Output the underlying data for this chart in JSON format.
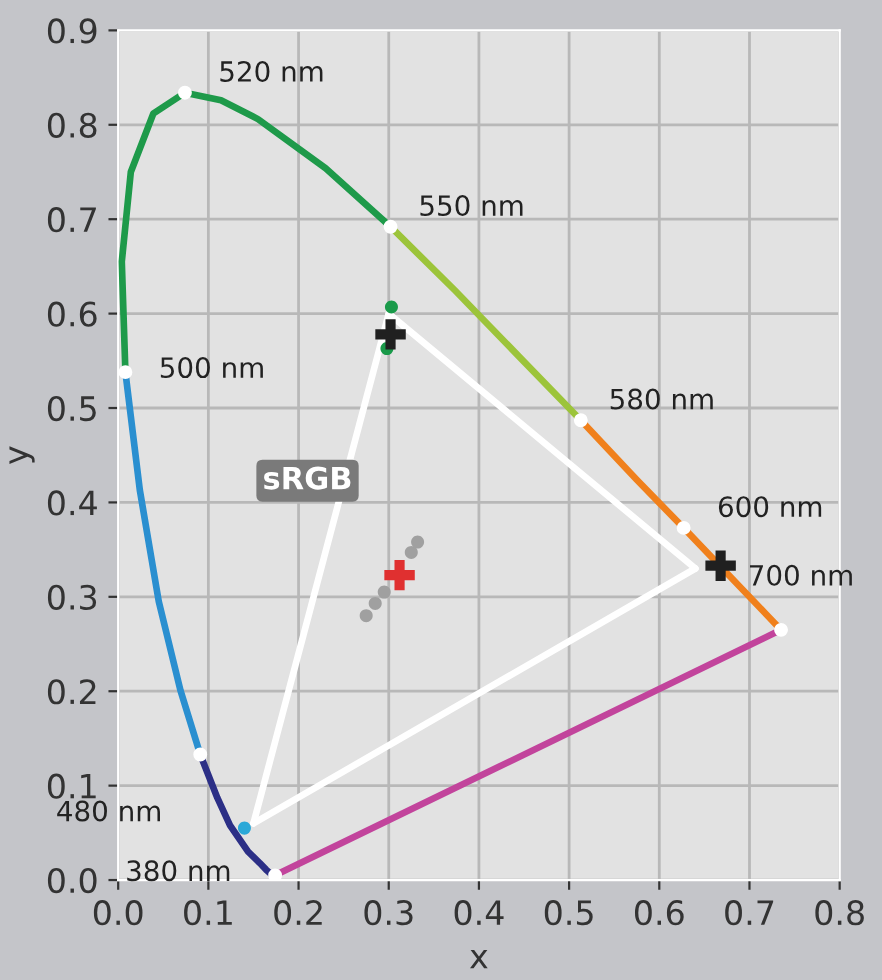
{
  "chart_data": {
    "type": "line",
    "xlabel": "x",
    "ylabel": "y",
    "xlim": [
      0,
      0.8
    ],
    "ylim": [
      0,
      0.9
    ],
    "xticks": [
      {
        "value": 0,
        "label": "0.0"
      },
      0.1,
      0.2,
      0.3,
      0.4,
      0.5,
      0.6,
      0.7,
      0.8
    ],
    "yticks": [
      {
        "value": 0,
        "label": "0.0"
      },
      0.1,
      0.2,
      0.3,
      0.4,
      0.5,
      0.6,
      0.7,
      0.8,
      0.9
    ],
    "grid": true,
    "legend": false,
    "marker": "none",
    "line_style": "solid",
    "series": [
      {
        "color": "#2c2f86",
        "x": [
          0.174,
          0.171,
          0.164,
          0.157,
          0.144,
          0.124,
          0.11,
          0.091
        ],
        "values": [
          0.005,
          0.005,
          0.011,
          0.018,
          0.03,
          0.058,
          0.087,
          0.133
        ]
      },
      {
        "color": "#2a8fd0",
        "x": [
          0.091,
          0.069,
          0.045,
          0.024,
          0.008
        ],
        "values": [
          0.133,
          0.201,
          0.295,
          0.413,
          0.538
        ]
      },
      {
        "color": "#1e9a4a",
        "x": [
          0.008,
          0.004,
          0.014,
          0.039,
          0.074,
          0.114,
          0.155,
          0.23,
          0.302
        ],
        "values": [
          0.538,
          0.655,
          0.75,
          0.812,
          0.834,
          0.826,
          0.806,
          0.754,
          0.692
        ]
      },
      {
        "color": "#9cc43a",
        "x": [
          0.302,
          0.373,
          0.444,
          0.513
        ],
        "values": [
          0.692,
          0.625,
          0.555,
          0.487
        ]
      },
      {
        "color": "#f0801c",
        "x": [
          0.513,
          0.575,
          0.627,
          0.692,
          0.719,
          0.735
        ],
        "values": [
          0.487,
          0.424,
          0.373,
          0.308,
          0.281,
          0.265
        ]
      },
      {
        "color": "#c2449c",
        "x": [
          0.174,
          0.735
        ],
        "values": [
          0.005,
          0.265
        ]
      },
      {
        "color": "#ffffff",
        "x": [
          0.3,
          0.64
        ],
        "values": [
          0.6,
          0.33
        ]
      },
      {
        "color": "#ffffff",
        "x": [
          0.15,
          0.3
        ],
        "values": [
          0.06,
          0.6
        ]
      },
      {
        "color": "#ffffff",
        "x": [
          0.15,
          0.64
        ],
        "values": [
          0.06,
          0.33
        ]
      },
      {
        "type": "scatter",
        "marker": "circle",
        "color": "#a0a0a0",
        "x": [
          0.275,
          0.285,
          0.295,
          0.325,
          0.332
        ],
        "values": [
          0.28,
          0.293,
          0.305,
          0.347,
          0.358
        ]
      },
      {
        "type": "scatter",
        "marker": "circle",
        "colors": [
          "#1a9a4a",
          "#1a9a4a",
          "#2aa8d8"
        ],
        "x": [
          0.303,
          0.298,
          0.14
        ],
        "values": [
          0.607,
          0.563,
          0.055
        ]
      },
      {
        "type": "scatter",
        "marker": "cross",
        "color": "#e03030",
        "x": [
          0.312
        ],
        "values": [
          0.323
        ]
      },
      {
        "type": "scatter",
        "marker": "cross",
        "color": "#202020",
        "x": [
          0.302,
          0.668
        ],
        "values": [
          0.578,
          0.333
        ]
      }
    ],
    "annotations": [
      {
        "text": "520 nm",
        "x": 0.074,
        "y": 0.834
      },
      {
        "text": "550 nm",
        "x": 0.302,
        "y": 0.692
      },
      {
        "text": "500 nm",
        "x": 0.008,
        "y": 0.538
      },
      {
        "text": "580 nm",
        "x": 0.513,
        "y": 0.487
      },
      {
        "text": "600 nm",
        "x": 0.627,
        "y": 0.373
      },
      {
        "text": "700 nm",
        "x": 0.735,
        "y": 0.265
      },
      {
        "text": "480 nm",
        "x": 0.091,
        "y": 0.133
      },
      {
        "text": "380 nm",
        "x": 0.174,
        "y": 0.005
      },
      "sRGB"
    ]
  }
}
